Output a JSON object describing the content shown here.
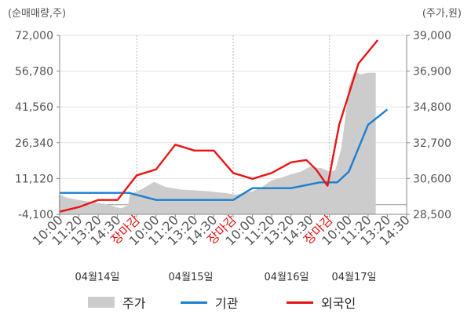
{
  "units": {
    "left": "(순매매량,주)",
    "right": "(주가,원)"
  },
  "colors": {
    "price": "#cccccc",
    "institution": "#1b7fd1",
    "foreign": "#e81515",
    "grid": "#e2e2e2",
    "axis": "#8a8a8a",
    "tick_text": "#555555",
    "session_start": "#e81515"
  },
  "chart_data": {
    "type": "line",
    "x_tick_labels": [
      "10:00",
      "11:20",
      "13:20",
      "14:30",
      "장마감",
      "10:00",
      "11:20",
      "13:20",
      "14:30",
      "장마감",
      "10:00",
      "11:20",
      "13:20",
      "14:30",
      "장마감",
      "10:00",
      "11:20",
      "13:20",
      "14:30"
    ],
    "session_start_label": "장마감",
    "date_labels": [
      "04월14일",
      "04월15일",
      "04월16일",
      "04월17일"
    ],
    "y_left": {
      "label": "(순매매량,주)",
      "ticks": [
        "72,000",
        "56,780",
        "41,560",
        "26,340",
        "11,120",
        "-4,100"
      ],
      "min": -4100,
      "max": 72000
    },
    "y_right": {
      "label": "(주가,원)",
      "ticks": [
        "39,000",
        "36,900",
        "34,800",
        "32,700",
        "30,600",
        "28,500"
      ],
      "min": 28500,
      "max": 39000
    },
    "legend": [
      "주가",
      "기관",
      "외국인"
    ],
    "series": [
      {
        "name": "기관",
        "axis": "left",
        "values": [
          {
            "x": 0,
            "y": 5000
          },
          {
            "x": 2,
            "y": 5000
          },
          {
            "x": 3.6,
            "y": 5000
          },
          {
            "x": 5,
            "y": 2000
          },
          {
            "x": 7,
            "y": 2000
          },
          {
            "x": 9,
            "y": 2000
          },
          {
            "x": 10,
            "y": 7000
          },
          {
            "x": 12,
            "y": 7000
          },
          {
            "x": 13.5,
            "y": 9500
          },
          {
            "x": 14.4,
            "y": 9500
          },
          {
            "x": 15,
            "y": 14000
          },
          {
            "x": 16,
            "y": 34000
          },
          {
            "x": 17,
            "y": 40500
          }
        ]
      },
      {
        "name": "외국인",
        "axis": "left",
        "values": [
          {
            "x": 0,
            "y": -3000
          },
          {
            "x": 1,
            "y": -1000
          },
          {
            "x": 2,
            "y": 2000
          },
          {
            "x": 3,
            "y": 2000
          },
          {
            "x": 4,
            "y": 12500
          },
          {
            "x": 5,
            "y": 15000
          },
          {
            "x": 6,
            "y": 25500
          },
          {
            "x": 7,
            "y": 23000
          },
          {
            "x": 8,
            "y": 23000
          },
          {
            "x": 9,
            "y": 13500
          },
          {
            "x": 10,
            "y": 11000
          },
          {
            "x": 11,
            "y": 13500
          },
          {
            "x": 12,
            "y": 18000
          },
          {
            "x": 12.8,
            "y": 19000
          },
          {
            "x": 13.3,
            "y": 15000
          },
          {
            "x": 13.9,
            "y": 8000
          },
          {
            "x": 14.5,
            "y": 34000
          },
          {
            "x": 15.5,
            "y": 60000
          },
          {
            "x": 16.5,
            "y": 70000
          }
        ]
      },
      {
        "name": "주가",
        "axis": "right",
        "type": "area",
        "values": [
          {
            "x": -0.05,
            "y": 29700
          },
          {
            "x": 0.3,
            "y": 29500
          },
          {
            "x": 0.7,
            "y": 29400
          },
          {
            "x": 1.2,
            "y": 29300
          },
          {
            "x": 1.8,
            "y": 29200
          },
          {
            "x": 2.4,
            "y": 29100
          },
          {
            "x": 3.0,
            "y": 28900
          },
          {
            "x": 3.2,
            "y": 28850
          },
          {
            "x": 3.45,
            "y": 29000
          },
          {
            "x": 3.55,
            "y": 29000
          },
          {
            "x": 3.62,
            "y": 29600
          },
          {
            "x": 3.9,
            "y": 29800
          },
          {
            "x": 4.3,
            "y": 30000
          },
          {
            "x": 4.9,
            "y": 30400
          },
          {
            "x": 5.5,
            "y": 30100
          },
          {
            "x": 6.3,
            "y": 29950
          },
          {
            "x": 7.1,
            "y": 29900
          },
          {
            "x": 7.8,
            "y": 29850
          },
          {
            "x": 8.6,
            "y": 29750
          },
          {
            "x": 9.1,
            "y": 29650
          },
          {
            "x": 9.6,
            "y": 29750
          },
          {
            "x": 10.0,
            "y": 29850
          },
          {
            "x": 10.5,
            "y": 30100
          },
          {
            "x": 11.0,
            "y": 30500
          },
          {
            "x": 11.5,
            "y": 30650
          },
          {
            "x": 12.0,
            "y": 30850
          },
          {
            "x": 12.5,
            "y": 31000
          },
          {
            "x": 13.0,
            "y": 31300
          },
          {
            "x": 13.6,
            "y": 31200
          },
          {
            "x": 14.0,
            "y": 31000
          },
          {
            "x": 14.3,
            "y": 31100
          },
          {
            "x": 14.4,
            "y": 31500
          },
          {
            "x": 14.6,
            "y": 32300
          },
          {
            "x": 14.8,
            "y": 34000
          },
          {
            "x": 15.0,
            "y": 36000
          },
          {
            "x": 15.3,
            "y": 36900
          },
          {
            "x": 15.6,
            "y": 36700
          },
          {
            "x": 16.0,
            "y": 36800
          },
          {
            "x": 16.4,
            "y": 36800
          }
        ]
      }
    ]
  }
}
